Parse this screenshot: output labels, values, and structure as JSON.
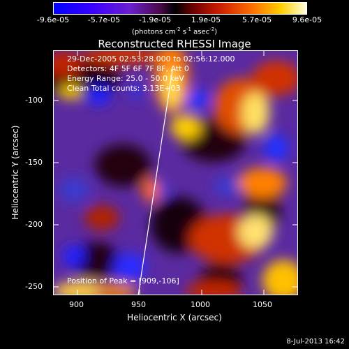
{
  "colorbar": {
    "ticks": [
      "-9.6e-05",
      "-5.7e-05",
      "-1.9e-05",
      "1.9e-05",
      "5.7e-05",
      "9.6e-05"
    ],
    "units_text": "(photons cm",
    "units_exp1": "-2",
    "units_mid": " s",
    "units_exp2": "-1",
    "units_end": " asec",
    "units_exp3": "-2",
    "units_close": ")"
  },
  "title": "Reconstructed RHESSI Image",
  "info": {
    "time_range": "29-Dec-2005 02:53:28.000 to 02:56:12.000",
    "detectors": "Detectors: 4F 5F 6F 7F 8F, Att 0",
    "energy": "Energy Range: 25.0 - 50.0 keV",
    "clean": "Clean     Total counts: 3.13E+03",
    "peak": "Position of Peak = [909,-106]"
  },
  "axes": {
    "xlabel": "Heliocentric X (arcsec)",
    "ylabel": "Heliocentric Y (arcsec)",
    "xticks": [
      "900",
      "950",
      "1000",
      "1050"
    ],
    "yticks": [
      "-100",
      "-150",
      "-200",
      "-250"
    ]
  },
  "footer": "8-Jul-2013 16:42"
}
